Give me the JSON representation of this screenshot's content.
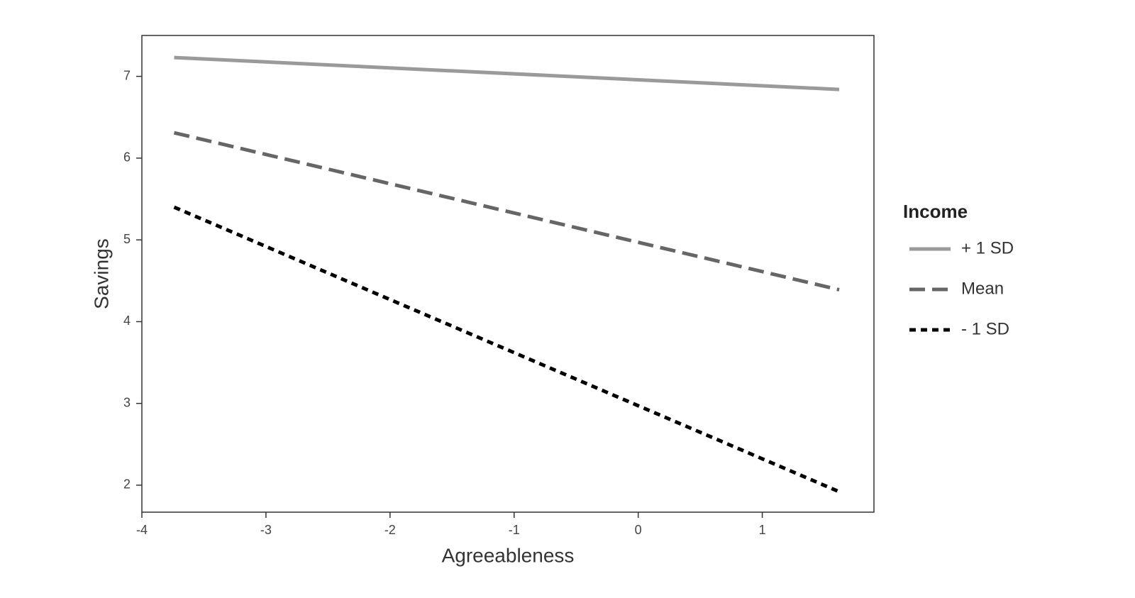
{
  "chart_data": {
    "type": "line",
    "x_label": "Agreeableness",
    "y_label": "Savings",
    "xlim": [
      -4,
      1.9
    ],
    "ylim": [
      1.67,
      7.5
    ],
    "xticks": [
      -4,
      -3,
      -2,
      -1,
      0,
      1
    ],
    "yticks": [
      2,
      3,
      4,
      5,
      6,
      7
    ],
    "x": [
      -3.74,
      1.62
    ],
    "legend_title": "Income",
    "legend": "right",
    "series": [
      {
        "name": "+ 1 SD",
        "color": "#9a9a9a",
        "dash": "solid",
        "values": [
          7.23,
          6.84
        ]
      },
      {
        "name": "Mean",
        "color": "#666666",
        "dash": "dashed",
        "values": [
          6.31,
          4.39
        ]
      },
      {
        "name": "- 1 SD",
        "color": "#000000",
        "dash": "dotted",
        "values": [
          5.4,
          1.92
        ]
      }
    ]
  }
}
